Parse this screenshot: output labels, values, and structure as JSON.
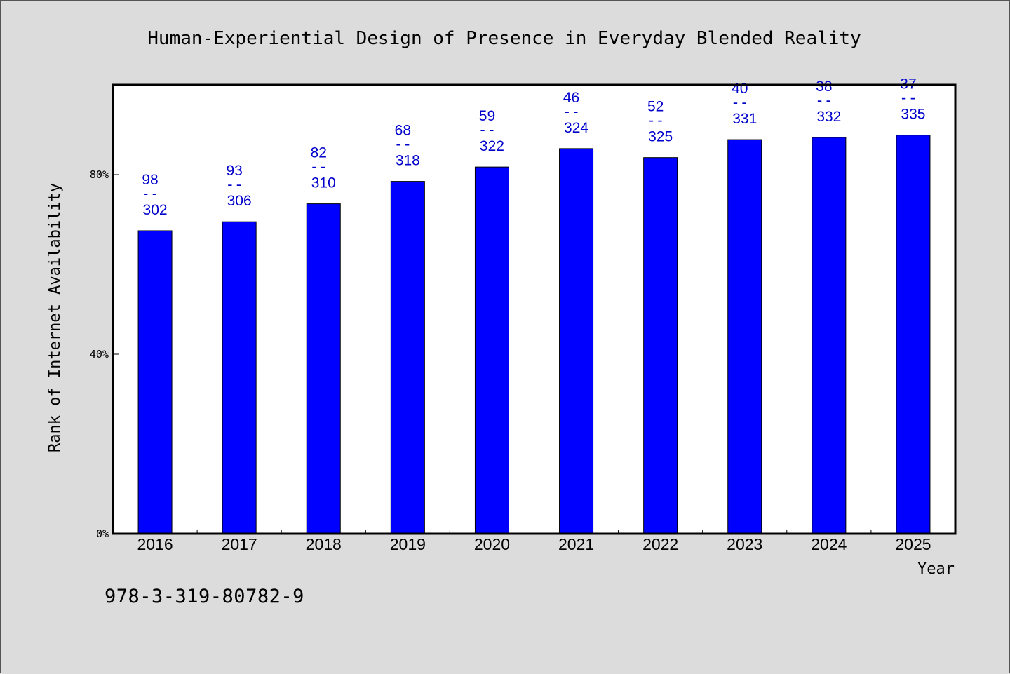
{
  "chart_data": {
    "type": "bar",
    "title": "Human-Experiential Design of Presence in Everyday Blended Reality",
    "xlabel": "Year",
    "ylabel": "Rank of Internet Availability",
    "categories": [
      "2016",
      "2017",
      "2018",
      "2019",
      "2020",
      "2021",
      "2022",
      "2023",
      "2024",
      "2025"
    ],
    "values": [
      0.675,
      0.695,
      0.735,
      0.785,
      0.817,
      0.858,
      0.838,
      0.878,
      0.883,
      0.888
    ],
    "labels": [
      {
        "rank": "98",
        "sep": "--",
        "value": "302"
      },
      {
        "rank": "93",
        "sep": "--",
        "value": "306"
      },
      {
        "rank": "82",
        "sep": "--",
        "value": "310"
      },
      {
        "rank": "68",
        "sep": "--",
        "value": "318"
      },
      {
        "rank": "59",
        "sep": "--",
        "value": "322"
      },
      {
        "rank": "46",
        "sep": "--",
        "value": "324"
      },
      {
        "rank": "52",
        "sep": "--",
        "value": "325"
      },
      {
        "rank": "40",
        "sep": "--",
        "value": "331"
      },
      {
        "rank": "38",
        "sep": "--",
        "value": "332"
      },
      {
        "rank": "37",
        "sep": "--",
        "value": "335"
      }
    ],
    "ylim": [
      0,
      1
    ],
    "yticks": [
      0,
      0.4,
      0.8
    ],
    "ytick_labels": [
      "0%",
      "40%",
      "80%"
    ],
    "grid": false,
    "bar_color": "#0000ff",
    "label_color": "#0000cc"
  },
  "footer": {
    "isbn": "978-3-319-80782-9"
  }
}
